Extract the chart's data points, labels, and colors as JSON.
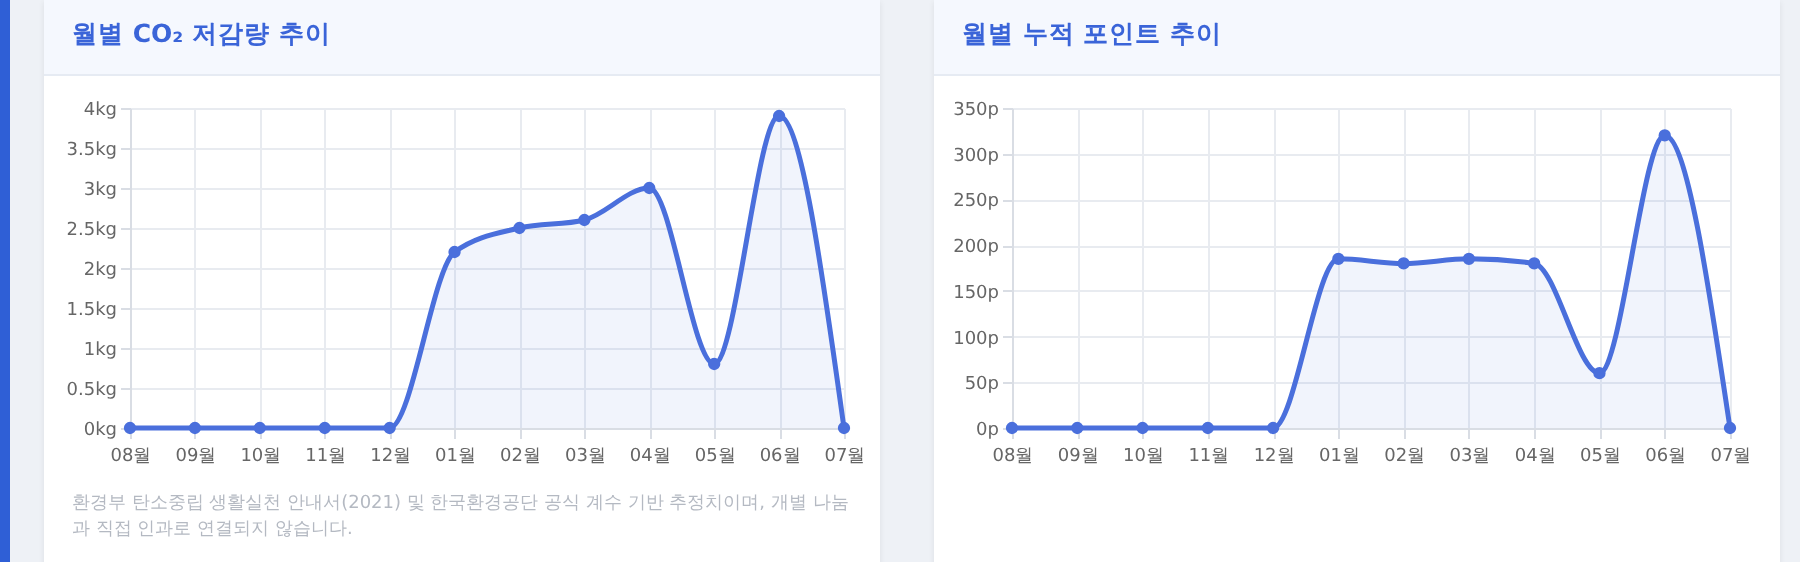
{
  "chart_data": [
    {
      "type": "area",
      "title": "월별 CO₂ 저감량 추이",
      "categories": [
        "08월",
        "09월",
        "10월",
        "11월",
        "12월",
        "01월",
        "02월",
        "03월",
        "04월",
        "05월",
        "06월",
        "07월"
      ],
      "series": [
        {
          "color": "#4a6fdc",
          "values": [
            0,
            0,
            0,
            0,
            0,
            2.2,
            2.5,
            2.6,
            3.0,
            0.8,
            3.9,
            0
          ]
        }
      ],
      "ylim": [
        0,
        4
      ],
      "yticks": [
        {
          "value": 0,
          "label": "0kg"
        },
        {
          "value": 0.5,
          "label": "0.5kg"
        },
        {
          "value": 1,
          "label": "1kg"
        },
        {
          "value": 1.5,
          "label": "1.5kg"
        },
        {
          "value": 2,
          "label": "2kg"
        },
        {
          "value": 2.5,
          "label": "2.5kg"
        },
        {
          "value": 3,
          "label": "3kg"
        },
        {
          "value": 3.5,
          "label": "3.5kg"
        },
        {
          "value": 4,
          "label": "4kg"
        }
      ],
      "grid": true,
      "marker": "circle",
      "annotations": [
        "환경부 탄소중립 생활실천 안내서(2021) 및 한국환경공단 공식 계수 기반 추정치이며, 개별 나눔과 직접 인과로 연결되지 않습니다."
      ]
    },
    {
      "type": "area",
      "title": "월별 누적 포인트 추이",
      "categories": [
        "08월",
        "09월",
        "10월",
        "11월",
        "12월",
        "01월",
        "02월",
        "03월",
        "04월",
        "05월",
        "06월",
        "07월"
      ],
      "series": [
        {
          "color": "#4a6fdc",
          "values": [
            0,
            0,
            0,
            0,
            0,
            185,
            180,
            185,
            180,
            60,
            320,
            0
          ]
        }
      ],
      "ylim": [
        0,
        350
      ],
      "yticks": [
        {
          "value": 0,
          "label": "0p"
        },
        {
          "value": 50,
          "label": "50p"
        },
        {
          "value": 100,
          "label": "100p"
        },
        {
          "value": 150,
          "label": "150p"
        },
        {
          "value": 200,
          "label": "200p"
        },
        {
          "value": 250,
          "label": "250p"
        },
        {
          "value": 300,
          "label": "300p"
        },
        {
          "value": 350,
          "label": "350p"
        }
      ],
      "grid": true,
      "marker": "circle"
    }
  ]
}
